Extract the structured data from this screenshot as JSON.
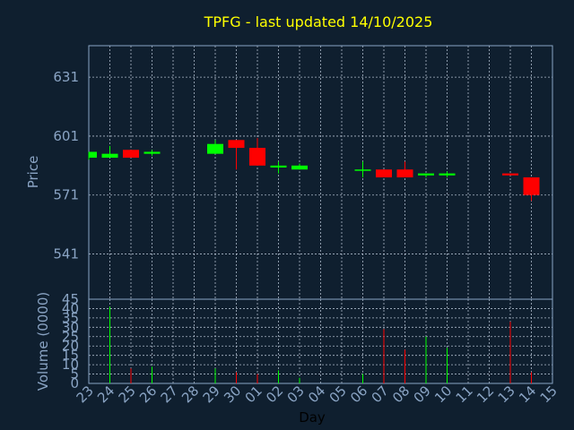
{
  "chart_data": {
    "type": "candlestick",
    "title": "TPFG - last updated 14/10/2025",
    "xlabel": "Day",
    "colors": {
      "up": "#00ff00",
      "down": "#ff0000",
      "title": "#ffff00",
      "axis": "#8aa4c4",
      "background": "#0f1f2f"
    },
    "days": [
      "23",
      "24",
      "25",
      "26",
      "27",
      "28",
      "29",
      "30",
      "01",
      "02",
      "03",
      "04",
      "05",
      "06",
      "07",
      "08",
      "09",
      "10",
      "11",
      "12",
      "13",
      "14",
      "15"
    ],
    "price_panel": {
      "ylabel": "Price",
      "ylim": [
        518,
        647
      ],
      "yticks": [
        541,
        571,
        601,
        631
      ],
      "grid": true
    },
    "volume_panel": {
      "ylabel": "Volume (0000)",
      "ylim": [
        0,
        45
      ],
      "yticks": [
        0,
        5,
        10,
        15,
        20,
        25,
        30,
        35,
        40,
        45
      ],
      "grid": true
    },
    "candles": [
      {
        "day": "23",
        "open": 590,
        "high": 593,
        "low": 589,
        "close": 593,
        "volume": 0
      },
      {
        "day": "24",
        "open": 590,
        "high": 596,
        "low": 590,
        "close": 592,
        "volume": 41
      },
      {
        "day": "25",
        "open": 594,
        "high": 594,
        "low": 590,
        "close": 590,
        "volume": 8
      },
      {
        "day": "26",
        "open": 592,
        "high": 594,
        "low": 591,
        "close": 593,
        "volume": 9
      },
      {
        "day": "29",
        "open": 592,
        "high": 599,
        "low": 592,
        "close": 597,
        "volume": 8
      },
      {
        "day": "30",
        "open": 599,
        "high": 599,
        "low": 584,
        "close": 595,
        "volume": 6
      },
      {
        "day": "01",
        "open": 595,
        "high": 600,
        "low": 586,
        "close": 586,
        "volume": 5
      },
      {
        "day": "02",
        "open": 585,
        "high": 588,
        "low": 582,
        "close": 586,
        "volume": 7
      },
      {
        "day": "03",
        "open": 584,
        "high": 587,
        "low": 584,
        "close": 586,
        "volume": 3
      },
      {
        "day": "06",
        "open": 584,
        "high": 588,
        "low": 580,
        "close": 584,
        "volume": 5
      },
      {
        "day": "07",
        "open": 584,
        "high": 584,
        "low": 580,
        "close": 580,
        "volume": 29
      },
      {
        "day": "08",
        "open": 584,
        "high": 588,
        "low": 580,
        "close": 580,
        "volume": 18
      },
      {
        "day": "09",
        "open": 581,
        "high": 582,
        "low": 580,
        "close": 582,
        "volume": 25
      },
      {
        "day": "10",
        "open": 581,
        "high": 583,
        "low": 580,
        "close": 582,
        "volume": 19
      },
      {
        "day": "13",
        "open": 582,
        "high": 582,
        "low": 581,
        "close": 581,
        "volume": 33
      },
      {
        "day": "14",
        "open": 580,
        "high": 580,
        "low": 568,
        "close": 571,
        "volume": 6
      }
    ]
  }
}
